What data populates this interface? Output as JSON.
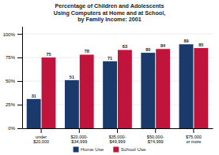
{
  "chart_data": {
    "type": "bar",
    "title": "Percentage of Children and Adolescents\nUsing Computers at Home and at School,\nby Family Income: 2001",
    "categories": [
      "under\n$20,000",
      "$20,000-\n$34,999",
      "$35,000-\n$49,999",
      "$50,000-\n$74,999",
      "$75,000\nor more"
    ],
    "series": [
      {
        "name": "Home Use",
        "color": "#1a3a6b",
        "values": [
          31,
          51,
          71,
          80,
          89
        ]
      },
      {
        "name": "School Use",
        "color": "#c0143c",
        "values": [
          75,
          78,
          83,
          84,
          85
        ]
      }
    ],
    "ylim": [
      0,
      108
    ],
    "yticks": [
      {
        "value": 0,
        "label": "0%"
      },
      {
        "value": 25,
        "label": "25%"
      },
      {
        "value": 50,
        "label": "50%"
      },
      {
        "value": 75,
        "label": "75%"
      },
      {
        "value": 100,
        "label": "100%"
      }
    ],
    "grid": true,
    "data_labels": true,
    "legend": "bottom"
  }
}
